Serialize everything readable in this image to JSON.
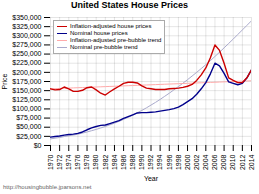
{
  "chart_data": {
    "type": "line",
    "title": "United States House Prices",
    "xlabel": "Year",
    "ylabel": "Price",
    "x": [
      1970,
      1971,
      1972,
      1973,
      1974,
      1975,
      1976,
      1977,
      1978,
      1979,
      1980,
      1981,
      1982,
      1983,
      1984,
      1985,
      1986,
      1987,
      1988,
      1989,
      1990,
      1991,
      1992,
      1993,
      1994,
      1995,
      1996,
      1997,
      1998,
      1999,
      2000,
      2001,
      2002,
      2003,
      2004,
      2005,
      2006,
      2007,
      2008,
      2009,
      2010,
      2011,
      2012,
      2013,
      2014
    ],
    "series": [
      {
        "name": "Inflation-adjusted house prices",
        "color": "#cc0000",
        "values": [
          155000,
          152000,
          153000,
          160000,
          155000,
          148000,
          148000,
          151000,
          158000,
          160000,
          152000,
          143000,
          138000,
          147000,
          155000,
          162000,
          170000,
          173000,
          173000,
          171000,
          163000,
          157000,
          155000,
          153000,
          153000,
          153000,
          155000,
          156000,
          157000,
          159000,
          162000,
          167000,
          178000,
          193000,
          212000,
          240000,
          275000,
          260000,
          225000,
          185000,
          178000,
          172000,
          172000,
          185000,
          207000
        ]
      },
      {
        "name": "Nominal house prices",
        "color": "#00008b",
        "values": [
          23000,
          24500,
          26000,
          28500,
          30000,
          31000,
          33000,
          37000,
          43000,
          48000,
          52000,
          55000,
          56000,
          60000,
          64000,
          68000,
          74000,
          79000,
          84000,
          89000,
          90000,
          90000,
          91000,
          92000,
          94000,
          96000,
          98000,
          101000,
          105000,
          112000,
          120000,
          128000,
          140000,
          155000,
          172000,
          196000,
          225000,
          218000,
          197000,
          174000,
          170000,
          166000,
          170000,
          185000,
          207000
        ]
      },
      {
        "name": "Inflation-adjusted pre-bubble trend",
        "color": "#ffaaaa",
        "values": [
          155000,
          155500,
          156000,
          156500,
          157000,
          157500,
          158000,
          158500,
          159000,
          159500,
          160000,
          160500,
          161000,
          161500,
          162000,
          162500,
          163000,
          163500,
          164000,
          164500,
          165000,
          165500,
          166000,
          166500,
          167000,
          167500,
          168000,
          168500,
          169000,
          169500,
          170000,
          170500,
          171000,
          171500,
          172000,
          172500,
          173000,
          173500,
          174000,
          174500,
          175000,
          175500,
          176000,
          176500,
          177000
        ]
      },
      {
        "name": "Nominal pre-bubble trend",
        "color": "#aaaacc",
        "values": [
          18000,
          20000,
          22000,
          24500,
          26500,
          28500,
          31000,
          34000,
          37000,
          40500,
          44000,
          48000,
          52000,
          56500,
          61000,
          66000,
          71500,
          77000,
          83000,
          89500,
          96000,
          103000,
          110500,
          118000,
          126000,
          134500,
          143000,
          152000,
          161000,
          170500,
          180000,
          190000,
          200000,
          210500,
          221000,
          232000,
          243500,
          255000,
          267000,
          279000,
          291000,
          303500,
          316000,
          328500,
          341000
        ]
      }
    ],
    "xlim": [
      1970,
      2014
    ],
    "xticks": [
      1970,
      1972,
      1974,
      1976,
      1978,
      1980,
      1982,
      1984,
      1986,
      1988,
      1990,
      1992,
      1994,
      1996,
      1998,
      2000,
      2002,
      2004,
      2006,
      2008,
      2010,
      2012,
      2014
    ],
    "ylim": [
      0,
      350000
    ],
    "yticks": [
      {
        "value": 0,
        "label": "$0"
      },
      {
        "value": 25000,
        "label": "$25,000"
      },
      {
        "value": 50000,
        "label": "$50,000"
      },
      {
        "value": 75000,
        "label": "$75,000"
      },
      {
        "value": 100000,
        "label": "$100,000"
      },
      {
        "value": 125000,
        "label": "$125,000"
      },
      {
        "value": 150000,
        "label": "$150,000"
      },
      {
        "value": 175000,
        "label": "$175,000"
      },
      {
        "value": 200000,
        "label": "$200,000"
      },
      {
        "value": 225000,
        "label": "$225,000"
      },
      {
        "value": 250000,
        "label": "$250,000"
      },
      {
        "value": 275000,
        "label": "$275,000"
      },
      {
        "value": 300000,
        "label": "$300,000"
      },
      {
        "value": 325000,
        "label": "$325,000"
      },
      {
        "value": 350000,
        "label": "$350,000"
      }
    ],
    "grid": true,
    "legend": "upper left",
    "annotations": [
      "http://housingbubble.jparsons.net"
    ]
  }
}
